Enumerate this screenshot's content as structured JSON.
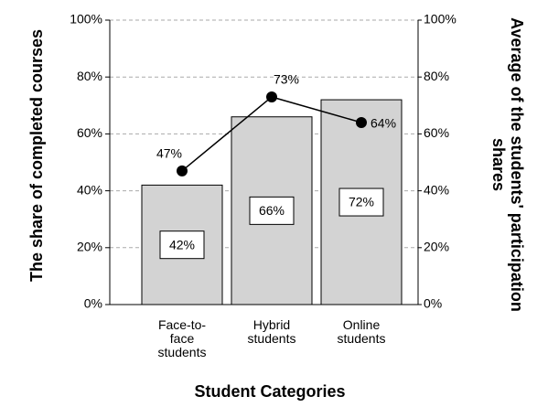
{
  "chart_data": {
    "type": "bar_line",
    "xlabel": "Student Categories",
    "ylabel": "The share of completed courses",
    "y2label": "Average of the students' participation shares",
    "categories": [
      "Face-to-face students",
      "Hybrid students",
      "Online students"
    ],
    "series": [
      {
        "type": "bar",
        "color": "#d3d3d3",
        "values": [
          42,
          66,
          72
        ],
        "value_labels": [
          "42%",
          "66%",
          "72%"
        ]
      },
      {
        "type": "line",
        "axis": "y2",
        "color": "#000000",
        "values": [
          47,
          73,
          64
        ],
        "value_labels": [
          "47%",
          "73%",
          "64%"
        ]
      }
    ],
    "ylim": [
      0,
      100
    ],
    "yticks": [
      {
        "value": 0,
        "label": "0%"
      },
      {
        "value": 20,
        "label": "20%"
      },
      {
        "value": 40,
        "label": "40%"
      },
      {
        "value": 60,
        "label": "60%"
      },
      {
        "value": 80,
        "label": "80%"
      },
      {
        "value": 100,
        "label": "100%"
      }
    ],
    "y2lim": [
      0,
      100
    ],
    "y2ticks": [
      {
        "value": 0,
        "label": "0%"
      },
      {
        "value": 20,
        "label": "20%"
      },
      {
        "value": 40,
        "label": "40%"
      },
      {
        "value": 60,
        "label": "60%"
      },
      {
        "value": 80,
        "label": "80%"
      },
      {
        "value": 100,
        "label": "100%"
      }
    ],
    "grid": true
  }
}
